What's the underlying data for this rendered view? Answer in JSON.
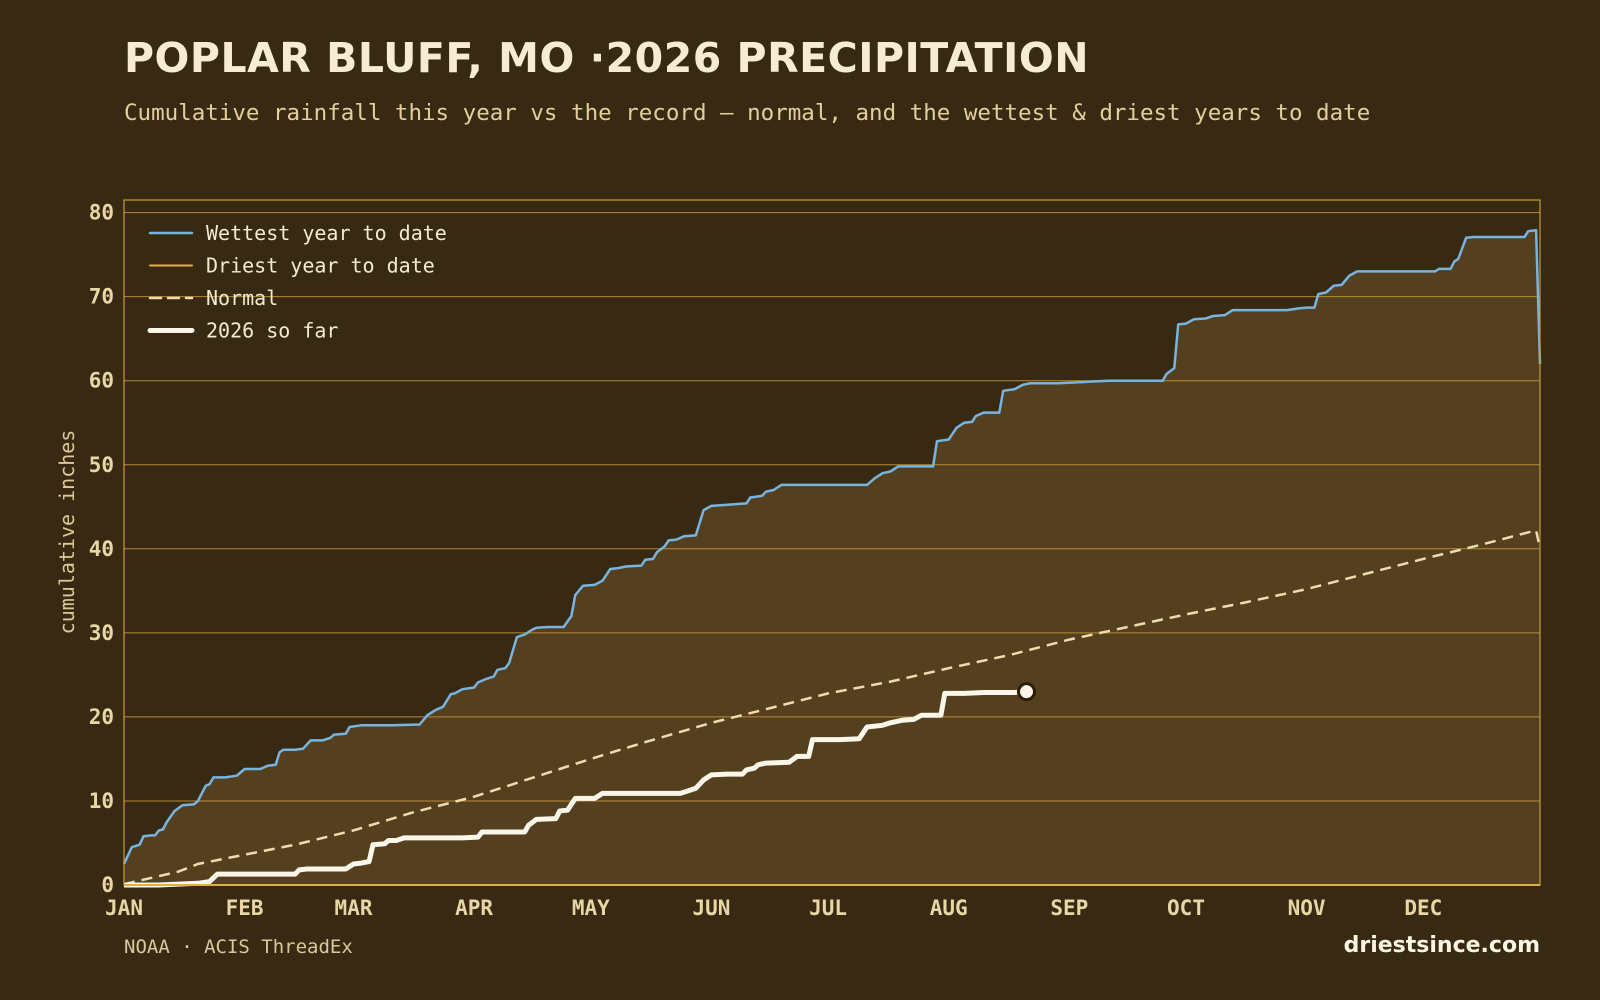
{
  "header": {
    "title": "POPLAR BLUFF, MO ·2026 PRECIPITATION",
    "subtitle": "Cumulative rainfall this year vs the record — normal, and the wettest & driest years to date"
  },
  "footer": {
    "source": "NOAA · ACIS ThreadEx",
    "brand": "driestsince.com"
  },
  "colors": {
    "background": "#382a12",
    "band_fill": "#54401e",
    "grid": "#c99a3a",
    "wettest": "#78b4e0",
    "driest": "#e0b040",
    "normal": "#efdcae",
    "current": "#fbf6ea"
  },
  "chart_data": {
    "type": "line",
    "title": "POPLAR BLUFF, MO ·2026 PRECIPITATION",
    "xlabel": "",
    "ylabel": "cumulative inches",
    "x_unit": "day of year",
    "xlim": [
      1,
      365
    ],
    "ylim": [
      0,
      81.5
    ],
    "yticks": [
      0,
      10,
      20,
      30,
      40,
      50,
      60,
      70,
      80
    ],
    "month_ticks": [
      {
        "label": "JAN",
        "day": 1
      },
      {
        "label": "FEB",
        "day": 32
      },
      {
        "label": "MAR",
        "day": 60
      },
      {
        "label": "APR",
        "day": 91
      },
      {
        "label": "MAY",
        "day": 121
      },
      {
        "label": "JUN",
        "day": 152
      },
      {
        "label": "JUL",
        "day": 182
      },
      {
        "label": "AUG",
        "day": 213
      },
      {
        "label": "SEP",
        "day": 244
      },
      {
        "label": "OCT",
        "day": 274
      },
      {
        "label": "NOV",
        "day": 305
      },
      {
        "label": "DEC",
        "day": 335
      }
    ],
    "grid": true,
    "legend_position": "top-left",
    "series": [
      {
        "name": "Wettest year to date",
        "style": "solid",
        "points": [
          [
            1,
            2.5
          ],
          [
            3,
            4.5
          ],
          [
            5,
            4.8
          ],
          [
            6,
            5.8
          ],
          [
            8,
            5.9
          ],
          [
            9,
            5.9
          ],
          [
            10,
            6.5
          ],
          [
            11,
            6.6
          ],
          [
            12,
            7.5
          ],
          [
            14,
            8.8
          ],
          [
            16,
            9.5
          ],
          [
            19,
            9.6
          ],
          [
            20,
            10.0
          ],
          [
            22,
            11.8
          ],
          [
            23,
            12.0
          ],
          [
            24,
            12.8
          ],
          [
            27,
            12.8
          ],
          [
            30,
            13.0
          ],
          [
            32,
            13.8
          ],
          [
            36,
            13.8
          ],
          [
            38,
            14.2
          ],
          [
            40,
            14.3
          ],
          [
            41,
            15.8
          ],
          [
            42,
            16.1
          ],
          [
            45,
            16.1
          ],
          [
            47,
            16.2
          ],
          [
            49,
            17.2
          ],
          [
            52,
            17.2
          ],
          [
            54,
            17.5
          ],
          [
            55,
            17.9
          ],
          [
            58,
            18.0
          ],
          [
            59,
            18.8
          ],
          [
            62,
            19.0
          ],
          [
            66,
            19.0
          ],
          [
            70,
            19.0
          ],
          [
            77,
            19.1
          ],
          [
            79,
            20.2
          ],
          [
            81,
            20.8
          ],
          [
            83,
            21.2
          ],
          [
            85,
            22.7
          ],
          [
            86,
            22.8
          ],
          [
            88,
            23.3
          ],
          [
            91,
            23.5
          ],
          [
            92,
            24.1
          ],
          [
            94,
            24.5
          ],
          [
            96,
            24.8
          ],
          [
            97,
            25.6
          ],
          [
            99,
            25.8
          ],
          [
            100,
            26.4
          ],
          [
            102,
            29.5
          ],
          [
            104,
            29.8
          ],
          [
            106,
            30.4
          ],
          [
            107,
            30.6
          ],
          [
            110,
            30.7
          ],
          [
            114,
            30.7
          ],
          [
            116,
            32.0
          ],
          [
            117,
            34.5
          ],
          [
            119,
            35.6
          ],
          [
            122,
            35.7
          ],
          [
            124,
            36.2
          ],
          [
            126,
            37.6
          ],
          [
            128,
            37.7
          ],
          [
            130,
            37.9
          ],
          [
            134,
            38.0
          ],
          [
            135,
            38.7
          ],
          [
            137,
            38.8
          ],
          [
            138,
            39.6
          ],
          [
            140,
            40.3
          ],
          [
            141,
            41.0
          ],
          [
            143,
            41.1
          ],
          [
            145,
            41.5
          ],
          [
            148,
            41.6
          ],
          [
            150,
            44.6
          ],
          [
            152,
            45.1
          ],
          [
            158,
            45.3
          ],
          [
            161,
            45.4
          ],
          [
            162,
            46.1
          ],
          [
            165,
            46.3
          ],
          [
            166,
            46.8
          ],
          [
            168,
            47.0
          ],
          [
            170,
            47.6
          ],
          [
            177,
            47.6
          ],
          [
            186,
            47.6
          ],
          [
            192,
            47.6
          ],
          [
            194,
            48.4
          ],
          [
            196,
            49.0
          ],
          [
            198,
            49.2
          ],
          [
            200,
            49.8
          ],
          [
            209,
            49.8
          ],
          [
            210,
            52.8
          ],
          [
            213,
            53.0
          ],
          [
            215,
            54.4
          ],
          [
            217,
            55.0
          ],
          [
            219,
            55.1
          ],
          [
            220,
            55.8
          ],
          [
            222,
            56.2
          ],
          [
            226,
            56.2
          ],
          [
            227,
            58.8
          ],
          [
            230,
            59.0
          ],
          [
            232,
            59.5
          ],
          [
            234,
            59.7
          ],
          [
            241,
            59.7
          ],
          [
            246,
            59.8
          ],
          [
            250,
            59.9
          ],
          [
            254,
            60.0
          ],
          [
            262,
            60.0
          ],
          [
            268,
            60.0
          ],
          [
            269,
            60.8
          ],
          [
            271,
            61.5
          ],
          [
            272,
            66.7
          ],
          [
            274,
            66.8
          ],
          [
            276,
            67.3
          ],
          [
            279,
            67.4
          ],
          [
            281,
            67.7
          ],
          [
            284,
            67.8
          ],
          [
            286,
            68.4
          ],
          [
            292,
            68.4
          ],
          [
            300,
            68.4
          ],
          [
            303,
            68.6
          ],
          [
            305,
            68.7
          ],
          [
            307,
            68.7
          ],
          [
            308,
            70.3
          ],
          [
            310,
            70.5
          ],
          [
            312,
            71.3
          ],
          [
            314,
            71.4
          ],
          [
            316,
            72.5
          ],
          [
            318,
            73.0
          ],
          [
            324,
            73.0
          ],
          [
            333,
            73.0
          ],
          [
            338,
            73.0
          ],
          [
            339,
            73.3
          ],
          [
            342,
            73.3
          ],
          [
            343,
            74.2
          ],
          [
            344,
            74.5
          ],
          [
            346,
            77.0
          ],
          [
            348,
            77.1
          ],
          [
            355,
            77.1
          ],
          [
            361,
            77.1
          ],
          [
            362,
            77.8
          ],
          [
            364,
            77.9
          ],
          [
            365,
            62.0
          ]
        ]
      },
      {
        "name": "Driest year to date",
        "style": "solid",
        "points": [
          [
            1,
            0.0
          ],
          [
            365,
            0.0
          ]
        ]
      },
      {
        "name": "Normal",
        "style": "dashed",
        "points": [
          [
            1,
            0.1
          ],
          [
            15,
            1.6
          ],
          [
            20,
            2.5
          ],
          [
            32,
            3.6
          ],
          [
            45,
            4.8
          ],
          [
            60,
            6.5
          ],
          [
            75,
            8.6
          ],
          [
            91,
            10.5
          ],
          [
            105,
            12.6
          ],
          [
            121,
            15.0
          ],
          [
            135,
            17.0
          ],
          [
            152,
            19.3
          ],
          [
            165,
            20.8
          ],
          [
            182,
            22.8
          ],
          [
            198,
            24.2
          ],
          [
            213,
            25.8
          ],
          [
            229,
            27.4
          ],
          [
            244,
            29.2
          ],
          [
            259,
            30.7
          ],
          [
            274,
            32.2
          ],
          [
            289,
            33.6
          ],
          [
            305,
            35.2
          ],
          [
            320,
            37.0
          ],
          [
            335,
            38.8
          ],
          [
            350,
            40.5
          ],
          [
            364,
            42.2
          ],
          [
            365,
            40.0
          ]
        ]
      },
      {
        "name": "2026 so far",
        "style": "bold",
        "points": [
          [
            1,
            0.0
          ],
          [
            10,
            0.0
          ],
          [
            20,
            0.2
          ],
          [
            23,
            0.4
          ],
          [
            25,
            1.3
          ],
          [
            35,
            1.3
          ],
          [
            45,
            1.3
          ],
          [
            46,
            1.8
          ],
          [
            48,
            1.9
          ],
          [
            58,
            1.9
          ],
          [
            60,
            2.5
          ],
          [
            62,
            2.6
          ],
          [
            64,
            2.8
          ],
          [
            65,
            4.8
          ],
          [
            68,
            4.9
          ],
          [
            69,
            5.3
          ],
          [
            71,
            5.3
          ],
          [
            73,
            5.6
          ],
          [
            80,
            5.6
          ],
          [
            88,
            5.6
          ],
          [
            92,
            5.7
          ],
          [
            93,
            6.3
          ],
          [
            96,
            6.3
          ],
          [
            104,
            6.3
          ],
          [
            105,
            7.1
          ],
          [
            107,
            7.8
          ],
          [
            112,
            7.9
          ],
          [
            113,
            8.8
          ],
          [
            115,
            8.9
          ],
          [
            117,
            10.3
          ],
          [
            122,
            10.3
          ],
          [
            124,
            10.9
          ],
          [
            130,
            10.9
          ],
          [
            140,
            10.9
          ],
          [
            144,
            10.9
          ],
          [
            146,
            11.2
          ],
          [
            148,
            11.5
          ],
          [
            150,
            12.5
          ],
          [
            152,
            13.1
          ],
          [
            156,
            13.2
          ],
          [
            160,
            13.2
          ],
          [
            161,
            13.7
          ],
          [
            163,
            13.9
          ],
          [
            164,
            14.3
          ],
          [
            166,
            14.5
          ],
          [
            172,
            14.6
          ],
          [
            174,
            15.3
          ],
          [
            177,
            15.3
          ],
          [
            178,
            17.3
          ],
          [
            185,
            17.3
          ],
          [
            190,
            17.4
          ],
          [
            192,
            18.8
          ],
          [
            196,
            19.0
          ],
          [
            198,
            19.3
          ],
          [
            201,
            19.6
          ],
          [
            204,
            19.7
          ],
          [
            206,
            20.2
          ],
          [
            211,
            20.2
          ],
          [
            212,
            22.8
          ],
          [
            217,
            22.8
          ],
          [
            222,
            22.9
          ],
          [
            230,
            22.9
          ],
          [
            232,
            23.0
          ]
        ]
      }
    ],
    "current_marker": {
      "day": 233,
      "value": 23.0
    }
  },
  "legend": {
    "items": [
      {
        "label": "Wettest year to date",
        "kind": "wettest"
      },
      {
        "label": "Driest year to date",
        "kind": "driest"
      },
      {
        "label": "Normal",
        "kind": "normal"
      },
      {
        "label": "2026 so far",
        "kind": "current"
      }
    ]
  }
}
